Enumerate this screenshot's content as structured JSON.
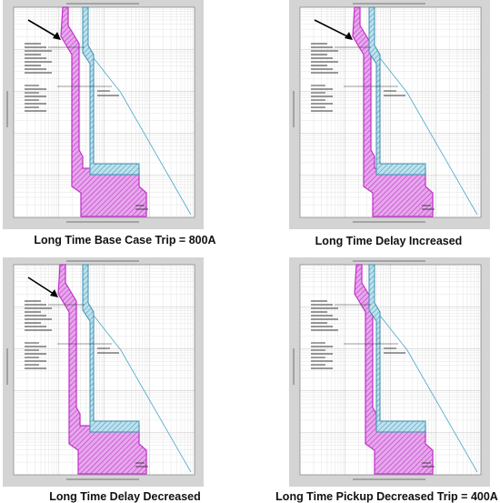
{
  "panels": [
    {
      "caption": "Long Time Base Case Trip = 800A",
      "scenario": "base",
      "show_arrow": true,
      "colors": {
        "breaker_curve": "#c030c8",
        "breaker_fill": "#e6a8ec",
        "fuse_curve": "#3f8fb0",
        "fuse_fill": "#bde2ee",
        "damage_curve": "#4aa6cc"
      }
    },
    {
      "caption": "Long Time Delay Increased",
      "scenario": "delay-increased",
      "show_arrow": true,
      "colors": {
        "breaker_curve": "#c030c8",
        "breaker_fill": "#e6a8ec",
        "fuse_curve": "#3f8fb0",
        "fuse_fill": "#bde2ee",
        "damage_curve": "#4aa6cc"
      }
    },
    {
      "caption": "Long Time Delay Decreased",
      "scenario": "delay-decreased",
      "show_arrow": true,
      "colors": {
        "breaker_curve": "#c030c8",
        "breaker_fill": "#e6a8ec",
        "fuse_curve": "#3f8fb0",
        "fuse_fill": "#bde2ee",
        "damage_curve": "#4aa6cc"
      }
    },
    {
      "caption": "Long Time Pickup Decreased Trip = 400A",
      "scenario": "pickup-decreased",
      "show_arrow": false,
      "colors": {
        "breaker_curve": "#c030c8",
        "breaker_fill": "#e6a8ec",
        "fuse_curve": "#3f8fb0",
        "fuse_fill": "#bde2ee",
        "damage_curve": "#4aa6cc"
      }
    }
  ]
}
